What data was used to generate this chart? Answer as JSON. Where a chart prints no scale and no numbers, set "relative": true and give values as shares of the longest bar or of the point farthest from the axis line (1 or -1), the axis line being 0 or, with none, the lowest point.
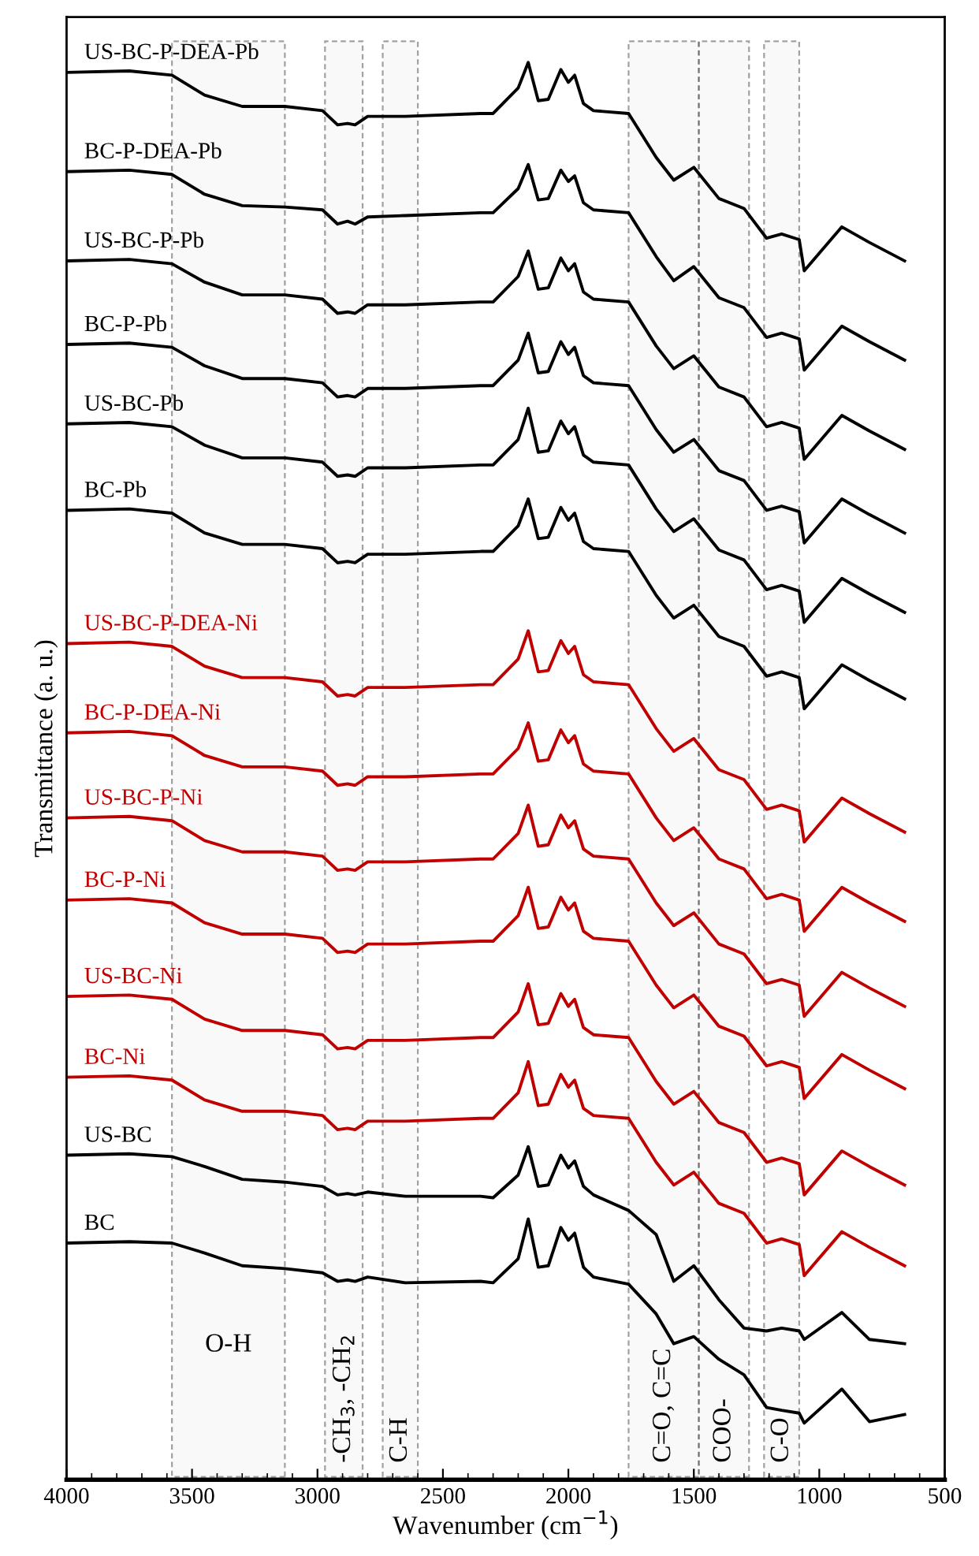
{
  "chart_data": {
    "type": "line",
    "relative": true,
    "xlabel": "Wavenumber (cm$^{−1}$)",
    "ylabel": "Transmittance (a. u.)",
    "xlim": [
      4000,
      500
    ],
    "xticks": [
      4000,
      3500,
      3000,
      2500,
      2000,
      1500,
      1000,
      500
    ],
    "x": [
      4000,
      3750,
      3580,
      3450,
      3300,
      3130,
      2980,
      2920,
      2880,
      2850,
      2800,
      2650,
      2350,
      2300,
      2200,
      2160,
      2120,
      2080,
      2030,
      2000,
      1975,
      1940,
      1900,
      1760,
      1650,
      1580,
      1500,
      1400,
      1300,
      1210,
      1150,
      1080,
      1060,
      910,
      800,
      660
    ],
    "legend": false,
    "grid": false,
    "marker": "none",
    "line_style": "solid",
    "bands": [
      {
        "axis": "x",
        "from": 3580,
        "to": 3130,
        "label": "O-H"
      },
      {
        "axis": "x",
        "from": 2970,
        "to": 2820,
        "label": "-CH$_{3}$, -CH$_{2}$"
      },
      {
        "axis": "x",
        "from": 2740,
        "to": 2600,
        "label": "C-H"
      },
      {
        "axis": "x",
        "from": 1760,
        "to": 1480,
        "label": "C=O, C=C"
      },
      {
        "axis": "x",
        "from": 1480,
        "to": 1280,
        "label": "COO-"
      },
      {
        "axis": "x",
        "from": 1220,
        "to": 1080,
        "label": "C-O"
      }
    ],
    "series": [
      {
        "name": "US-BC-P-DEA-Pb",
        "color": "#000000",
        "values": [
          0.993,
          0.994,
          0.991,
          0.977,
          0.969,
          0.969,
          0.966,
          0.956,
          0.957,
          0.956,
          0.962,
          0.962,
          0.964,
          0.964,
          0.982,
          1.0,
          0.973,
          0.974,
          0.995,
          0.986,
          0.991,
          0.971,
          0.966,
          0.964,
          0.933,
          0.917,
          0.926,
          0.904,
          0.897,
          0.876,
          0.879,
          0.875,
          0.853,
          0.884,
          0.873,
          0.86
        ]
      },
      {
        "name": "BC-P-DEA-Pb",
        "color": "#000000",
        "values": [
          0.923,
          0.924,
          0.921,
          0.907,
          0.899,
          0.898,
          0.896,
          0.886,
          0.888,
          0.886,
          0.891,
          0.892,
          0.894,
          0.894,
          0.911,
          0.928,
          0.903,
          0.904,
          0.924,
          0.916,
          0.92,
          0.901,
          0.896,
          0.894,
          0.863,
          0.846,
          0.856,
          0.834,
          0.827,
          0.806,
          0.809,
          0.805,
          0.783,
          0.814,
          0.803,
          0.79
        ]
      },
      {
        "name": "US-BC-P-Pb",
        "color": "#000000",
        "values": [
          0.86,
          0.861,
          0.858,
          0.845,
          0.836,
          0.836,
          0.833,
          0.823,
          0.824,
          0.823,
          0.829,
          0.829,
          0.831,
          0.831,
          0.849,
          0.867,
          0.84,
          0.841,
          0.862,
          0.853,
          0.858,
          0.838,
          0.833,
          0.831,
          0.8,
          0.784,
          0.793,
          0.771,
          0.764,
          0.743,
          0.746,
          0.742,
          0.72,
          0.751,
          0.74,
          0.727
        ]
      },
      {
        "name": "BC-P-Pb",
        "color": "#000000",
        "values": [
          0.801,
          0.802,
          0.799,
          0.786,
          0.777,
          0.777,
          0.774,
          0.764,
          0.765,
          0.764,
          0.77,
          0.77,
          0.772,
          0.772,
          0.79,
          0.809,
          0.781,
          0.782,
          0.803,
          0.794,
          0.799,
          0.779,
          0.774,
          0.772,
          0.741,
          0.725,
          0.734,
          0.712,
          0.705,
          0.684,
          0.687,
          0.683,
          0.661,
          0.692,
          0.681,
          0.668
        ]
      },
      {
        "name": "US-BC-Pb",
        "color": "#000000",
        "values": [
          0.745,
          0.746,
          0.743,
          0.73,
          0.721,
          0.721,
          0.718,
          0.708,
          0.709,
          0.708,
          0.714,
          0.714,
          0.716,
          0.716,
          0.734,
          0.756,
          0.725,
          0.726,
          0.747,
          0.738,
          0.743,
          0.723,
          0.718,
          0.716,
          0.685,
          0.669,
          0.678,
          0.656,
          0.649,
          0.628,
          0.631,
          0.627,
          0.605,
          0.636,
          0.625,
          0.612
        ]
      },
      {
        "name": "BC-Pb",
        "color": "#000000",
        "values": [
          0.684,
          0.685,
          0.682,
          0.668,
          0.66,
          0.66,
          0.657,
          0.647,
          0.648,
          0.647,
          0.653,
          0.653,
          0.655,
          0.655,
          0.673,
          0.692,
          0.664,
          0.665,
          0.686,
          0.677,
          0.682,
          0.662,
          0.657,
          0.655,
          0.624,
          0.608,
          0.617,
          0.595,
          0.588,
          0.567,
          0.57,
          0.566,
          0.544,
          0.575,
          0.564,
          0.551
        ]
      },
      {
        "name": "US-BC-P-DEA-Ni",
        "color": "#c00000",
        "values": [
          0.59,
          0.591,
          0.588,
          0.574,
          0.566,
          0.566,
          0.563,
          0.553,
          0.554,
          0.553,
          0.559,
          0.559,
          0.561,
          0.561,
          0.579,
          0.599,
          0.57,
          0.571,
          0.592,
          0.583,
          0.588,
          0.568,
          0.563,
          0.561,
          0.53,
          0.514,
          0.523,
          0.501,
          0.494,
          0.473,
          0.476,
          0.472,
          0.45,
          0.481,
          0.47,
          0.457
        ]
      },
      {
        "name": "BC-P-DEA-Ni",
        "color": "#c00000",
        "values": [
          0.527,
          0.528,
          0.525,
          0.511,
          0.503,
          0.503,
          0.5,
          0.49,
          0.491,
          0.49,
          0.496,
          0.496,
          0.498,
          0.498,
          0.516,
          0.534,
          0.507,
          0.508,
          0.529,
          0.52,
          0.525,
          0.505,
          0.5,
          0.498,
          0.467,
          0.451,
          0.46,
          0.438,
          0.431,
          0.41,
          0.413,
          0.409,
          0.387,
          0.418,
          0.407,
          0.394
        ]
      },
      {
        "name": "US-BC-P-Ni",
        "color": "#c00000",
        "values": [
          0.467,
          0.468,
          0.465,
          0.451,
          0.443,
          0.443,
          0.44,
          0.43,
          0.431,
          0.43,
          0.436,
          0.436,
          0.438,
          0.438,
          0.456,
          0.476,
          0.447,
          0.448,
          0.469,
          0.46,
          0.465,
          0.445,
          0.44,
          0.438,
          0.407,
          0.391,
          0.4,
          0.378,
          0.371,
          0.35,
          0.353,
          0.349,
          0.327,
          0.358,
          0.347,
          0.334
        ]
      },
      {
        "name": "BC-P-Ni",
        "color": "#c00000",
        "values": [
          0.409,
          0.41,
          0.407,
          0.393,
          0.385,
          0.385,
          0.382,
          0.372,
          0.373,
          0.372,
          0.378,
          0.378,
          0.38,
          0.38,
          0.398,
          0.418,
          0.389,
          0.39,
          0.411,
          0.402,
          0.407,
          0.387,
          0.382,
          0.38,
          0.349,
          0.333,
          0.342,
          0.32,
          0.313,
          0.292,
          0.295,
          0.291,
          0.269,
          0.3,
          0.289,
          0.276
        ]
      },
      {
        "name": "US-BC-Ni",
        "color": "#c00000",
        "values": [
          0.341,
          0.342,
          0.339,
          0.325,
          0.317,
          0.317,
          0.314,
          0.304,
          0.305,
          0.304,
          0.31,
          0.31,
          0.312,
          0.312,
          0.33,
          0.35,
          0.321,
          0.322,
          0.343,
          0.334,
          0.339,
          0.319,
          0.314,
          0.312,
          0.281,
          0.265,
          0.274,
          0.252,
          0.245,
          0.224,
          0.227,
          0.223,
          0.201,
          0.232,
          0.221,
          0.208
        ]
      },
      {
        "name": "BC-Ni",
        "color": "#c00000",
        "values": [
          0.284,
          0.285,
          0.282,
          0.268,
          0.26,
          0.26,
          0.257,
          0.247,
          0.248,
          0.247,
          0.253,
          0.253,
          0.255,
          0.255,
          0.273,
          0.295,
          0.264,
          0.265,
          0.286,
          0.277,
          0.282,
          0.262,
          0.257,
          0.255,
          0.224,
          0.208,
          0.217,
          0.195,
          0.188,
          0.167,
          0.17,
          0.166,
          0.144,
          0.175,
          0.164,
          0.151
        ]
      },
      {
        "name": "US-BC",
        "color": "#000000",
        "values": [
          0.229,
          0.23,
          0.228,
          0.221,
          0.212,
          0.21,
          0.207,
          0.201,
          0.202,
          0.201,
          0.203,
          0.2,
          0.2,
          0.199,
          0.215,
          0.235,
          0.207,
          0.208,
          0.229,
          0.22,
          0.225,
          0.207,
          0.201,
          0.19,
          0.173,
          0.14,
          0.151,
          0.127,
          0.107,
          0.105,
          0.107,
          0.105,
          0.099,
          0.118,
          0.099,
          0.096
        ]
      },
      {
        "name": "BC",
        "color": "#000000",
        "values": [
          0.167,
          0.168,
          0.167,
          0.16,
          0.151,
          0.149,
          0.146,
          0.14,
          0.141,
          0.14,
          0.143,
          0.139,
          0.14,
          0.139,
          0.156,
          0.184,
          0.15,
          0.151,
          0.178,
          0.169,
          0.174,
          0.15,
          0.143,
          0.138,
          0.117,
          0.096,
          0.101,
          0.085,
          0.074,
          0.051,
          0.049,
          0.047,
          0.04,
          0.064,
          0.041,
          0.046
        ]
      }
    ]
  }
}
